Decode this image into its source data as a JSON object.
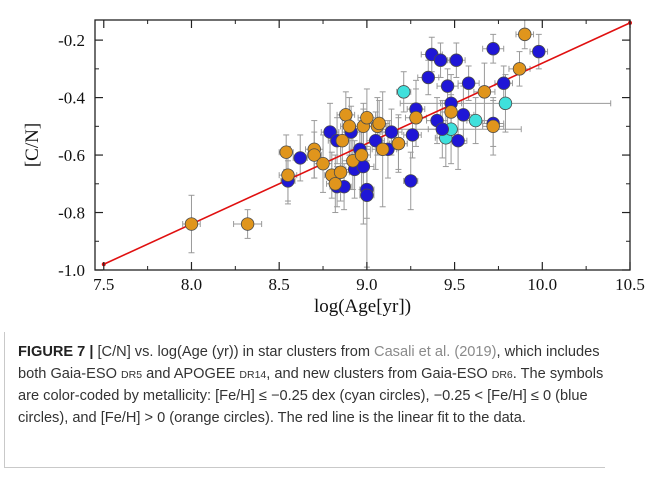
{
  "caption": {
    "figure_label": "FIGURE 7 |",
    "t1": " [C/N] vs. log(Age (yr)) in star clusters from ",
    "ref": "Casali et al. (2019)",
    "t2": ", which includes both Gaia-ESO ",
    "sc1": "DR5",
    "t3": " and APOGEE ",
    "sc2": "DR14",
    "t4": ", and new clusters from Gaia-ESO ",
    "sc3": "DR6",
    "t5": ". The symbols are color-coded by metallicity: [Fe/H] ≤ −0.25 dex (cyan circles), −0.25 < [Fe/H] ≤ 0 (blue circles), and [Fe/H] > 0 (orange circles). The red line is the linear fit to the data."
  },
  "colors": {
    "cyan": "#3fe0dc",
    "blue": "#1f16d6",
    "orange": "#e0951c",
    "fit_line": "#e01010",
    "error_bars": "#9a9a9a"
  },
  "chart_data": {
    "type": "scatter",
    "xlabel": "log(Age[yr])",
    "ylabel": "[C/N]",
    "xlim": [
      7.45,
      10.5
    ],
    "ylim": [
      -1.0,
      -0.13
    ],
    "xticks": [
      7.5,
      8.0,
      8.5,
      9.0,
      9.5,
      10.0,
      10.5
    ],
    "xtick_labels": [
      "7.5",
      "8.0",
      "8.5",
      "9.0",
      "9.5",
      "10.0",
      "10.5"
    ],
    "yticks": [
      -1.0,
      -0.8,
      -0.6,
      -0.4,
      -0.2
    ],
    "ytick_labels": [
      "-1.0",
      "-0.8",
      "-0.6",
      "-0.4",
      "-0.2"
    ],
    "grid": false,
    "fit_line": {
      "x": [
        7.5,
        10.5
      ],
      "y": [
        -0.98,
        -0.14
      ]
    },
    "series": [
      {
        "color": "cyan",
        "points": [
          {
            "x": 9.21,
            "y": -0.38,
            "xerr": 0.04,
            "yerr": 0.07
          },
          {
            "x": 9.45,
            "y": -0.54,
            "xerr": 0.06,
            "yerr": 0.1
          },
          {
            "x": 9.48,
            "y": -0.51,
            "xerr": 0.4,
            "yerr": 0.12
          },
          {
            "x": 9.62,
            "y": -0.48,
            "xerr": 0.05,
            "yerr": 0.08
          },
          {
            "x": 9.79,
            "y": -0.42,
            "xerr": 0.6,
            "yerr": 0.1
          }
        ]
      },
      {
        "color": "blue",
        "points": [
          {
            "x": 8.55,
            "y": -0.69,
            "xerr": 0.04,
            "yerr": 0.07
          },
          {
            "x": 8.62,
            "y": -0.61,
            "xerr": 0.04,
            "yerr": 0.08
          },
          {
            "x": 8.79,
            "y": -0.52,
            "xerr": 0.05,
            "yerr": 0.1
          },
          {
            "x": 8.83,
            "y": -0.55,
            "xerr": 0.05,
            "yerr": 0.08
          },
          {
            "x": 8.83,
            "y": -0.71,
            "xerr": 0.04,
            "yerr": 0.07
          },
          {
            "x": 8.87,
            "y": -0.71,
            "xerr": 0.04,
            "yerr": 0.08
          },
          {
            "x": 8.91,
            "y": -0.52,
            "xerr": 0.05,
            "yerr": 0.09
          },
          {
            "x": 8.93,
            "y": -0.65,
            "xerr": 0.05,
            "yerr": 0.1
          },
          {
            "x": 8.96,
            "y": -0.58,
            "xerr": 0.06,
            "yerr": 0.08
          },
          {
            "x": 8.98,
            "y": -0.64,
            "xerr": 0.06,
            "yerr": 0.2
          },
          {
            "x": 9.0,
            "y": -0.72,
            "xerr": 0.04,
            "yerr": 0.1
          },
          {
            "x": 9.0,
            "y": -0.74,
            "xerr": 0.04,
            "yerr": 0.25
          },
          {
            "x": 9.05,
            "y": -0.55,
            "xerr": 0.05,
            "yerr": 0.1
          },
          {
            "x": 9.12,
            "y": -0.58,
            "xerr": 0.05,
            "yerr": 0.1
          },
          {
            "x": 9.14,
            "y": -0.52,
            "xerr": 0.06,
            "yerr": 0.08
          },
          {
            "x": 9.18,
            "y": -0.56,
            "xerr": 0.05,
            "yerr": 0.09
          },
          {
            "x": 9.25,
            "y": -0.69,
            "xerr": 0.04,
            "yerr": 0.1
          },
          {
            "x": 9.26,
            "y": -0.53,
            "xerr": 0.05,
            "yerr": 0.08
          },
          {
            "x": 9.28,
            "y": -0.44,
            "xerr": 0.05,
            "yerr": 0.1
          },
          {
            "x": 9.35,
            "y": -0.33,
            "xerr": 0.06,
            "yerr": 0.06
          },
          {
            "x": 9.37,
            "y": -0.25,
            "xerr": 0.06,
            "yerr": 0.06
          },
          {
            "x": 9.4,
            "y": -0.48,
            "xerr": 0.06,
            "yerr": 0.08
          },
          {
            "x": 9.42,
            "y": -0.27,
            "xerr": 0.05,
            "yerr": 0.06
          },
          {
            "x": 9.43,
            "y": -0.51,
            "xerr": 0.08,
            "yerr": 0.1
          },
          {
            "x": 9.46,
            "y": -0.36,
            "xerr": 0.06,
            "yerr": 0.06
          },
          {
            "x": 9.48,
            "y": -0.42,
            "xerr": 0.06,
            "yerr": 0.1
          },
          {
            "x": 9.51,
            "y": -0.27,
            "xerr": 0.05,
            "yerr": 0.06
          },
          {
            "x": 9.52,
            "y": -0.55,
            "xerr": 0.05,
            "yerr": 0.1
          },
          {
            "x": 9.55,
            "y": -0.46,
            "xerr": 0.06,
            "yerr": 0.1
          },
          {
            "x": 9.58,
            "y": -0.35,
            "xerr": 0.06,
            "yerr": 0.06
          },
          {
            "x": 9.72,
            "y": -0.23,
            "xerr": 0.06,
            "yerr": 0.05
          },
          {
            "x": 9.72,
            "y": -0.49,
            "xerr": 0.06,
            "yerr": 0.08
          },
          {
            "x": 9.78,
            "y": -0.35,
            "xerr": 0.05,
            "yerr": 0.06
          },
          {
            "x": 9.98,
            "y": -0.24,
            "xerr": 0.05,
            "yerr": 0.06
          }
        ]
      },
      {
        "color": "orange",
        "points": [
          {
            "x": 8.0,
            "y": -0.84,
            "xerr": 0.05,
            "yerr": 0.1
          },
          {
            "x": 8.32,
            "y": -0.84,
            "xerr": 0.08,
            "yerr": 0.05
          },
          {
            "x": 8.54,
            "y": -0.59,
            "xerr": 0.04,
            "yerr": 0.06
          },
          {
            "x": 8.55,
            "y": -0.67,
            "xerr": 0.05,
            "yerr": 0.1
          },
          {
            "x": 8.7,
            "y": -0.58,
            "xerr": 0.05,
            "yerr": 0.1
          },
          {
            "x": 8.7,
            "y": -0.6,
            "xerr": 0.04,
            "yerr": 0.08
          },
          {
            "x": 8.75,
            "y": -0.63,
            "xerr": 0.05,
            "yerr": 0.1
          },
          {
            "x": 8.8,
            "y": -0.67,
            "xerr": 0.04,
            "yerr": 0.08
          },
          {
            "x": 8.82,
            "y": -0.7,
            "xerr": 0.05,
            "yerr": 0.1
          },
          {
            "x": 8.85,
            "y": -0.66,
            "xerr": 0.05,
            "yerr": 0.1
          },
          {
            "x": 8.86,
            "y": -0.55,
            "xerr": 0.05,
            "yerr": 0.1
          },
          {
            "x": 8.88,
            "y": -0.46,
            "xerr": 0.05,
            "yerr": 0.08
          },
          {
            "x": 8.9,
            "y": -0.5,
            "xerr": 0.05,
            "yerr": 0.1
          },
          {
            "x": 8.92,
            "y": -0.62,
            "xerr": 0.06,
            "yerr": 0.1
          },
          {
            "x": 8.97,
            "y": -0.6,
            "xerr": 0.05,
            "yerr": 0.12
          },
          {
            "x": 8.98,
            "y": -0.5,
            "xerr": 0.05,
            "yerr": 0.08
          },
          {
            "x": 9.0,
            "y": -0.47,
            "xerr": 0.05,
            "yerr": 0.1
          },
          {
            "x": 9.06,
            "y": -0.5,
            "xerr": 0.05,
            "yerr": 0.1
          },
          {
            "x": 9.07,
            "y": -0.49,
            "xerr": 0.06,
            "yerr": 0.08
          },
          {
            "x": 9.09,
            "y": -0.58,
            "xerr": 0.06,
            "yerr": 0.2
          },
          {
            "x": 9.18,
            "y": -0.56,
            "xerr": 0.05,
            "yerr": 0.1
          },
          {
            "x": 9.28,
            "y": -0.47,
            "xerr": 0.06,
            "yerr": 0.1
          },
          {
            "x": 9.48,
            "y": -0.45,
            "xerr": 0.06,
            "yerr": 0.1
          },
          {
            "x": 9.67,
            "y": -0.38,
            "xerr": 0.06,
            "yerr": 0.1
          },
          {
            "x": 9.72,
            "y": -0.5,
            "xerr": 0.06,
            "yerr": 0.1
          },
          {
            "x": 9.87,
            "y": -0.3,
            "xerr": 0.06,
            "yerr": 0.06
          },
          {
            "x": 9.9,
            "y": -0.18,
            "xerr": 0.05,
            "yerr": 0.05
          }
        ]
      }
    ]
  }
}
